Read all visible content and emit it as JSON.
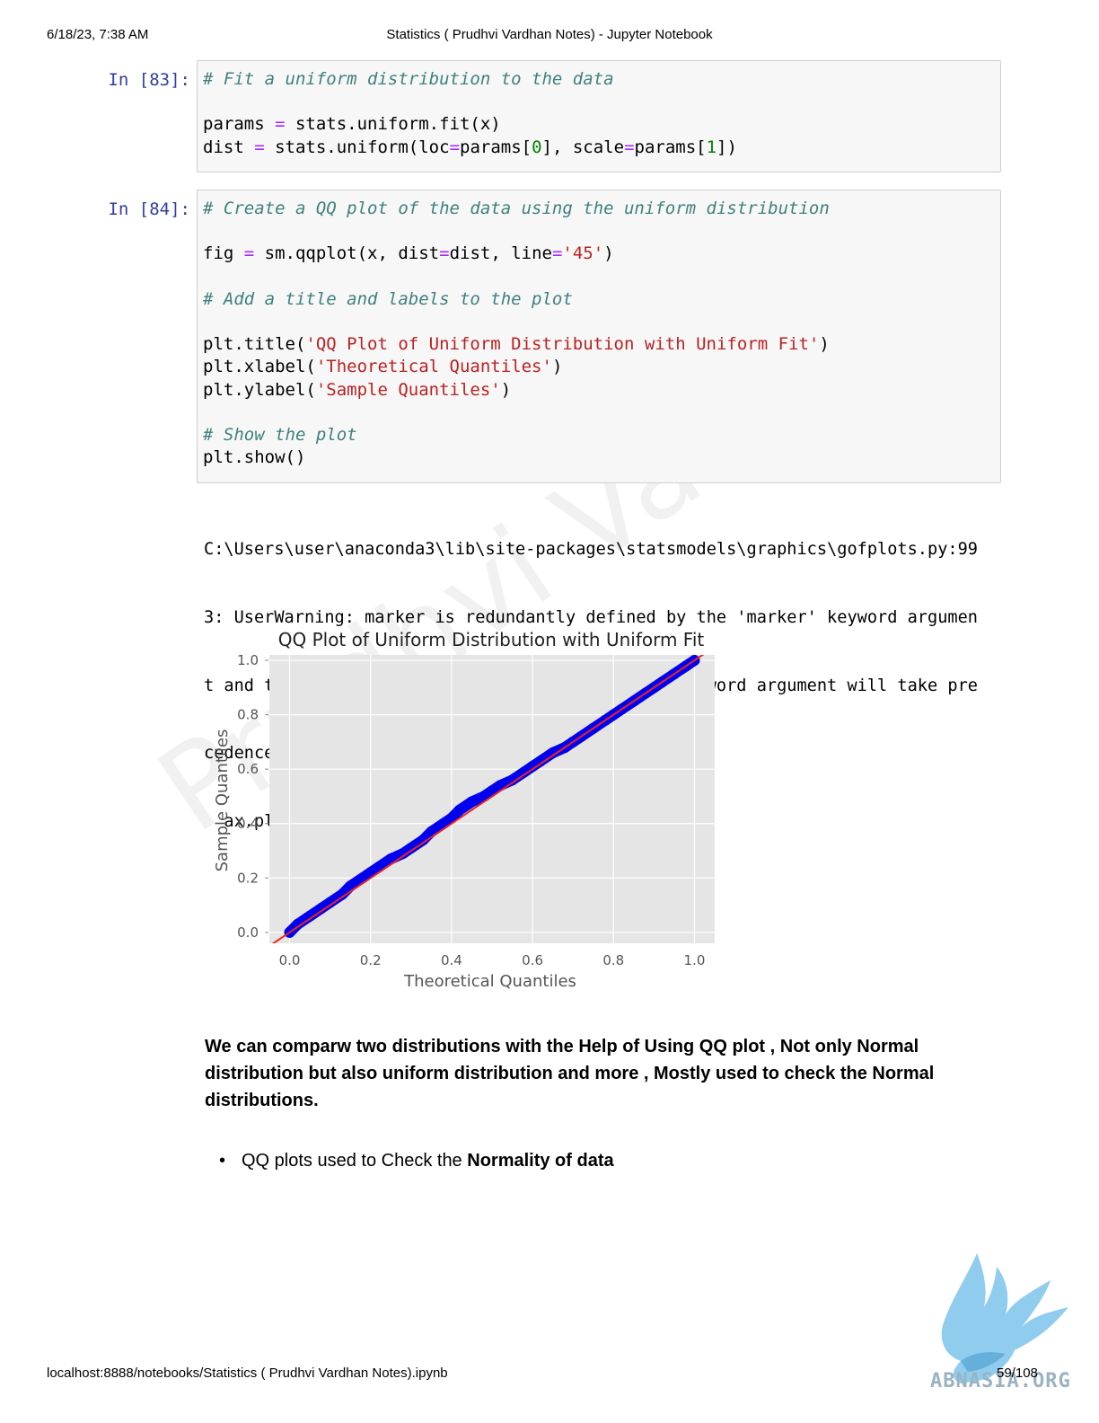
{
  "header": {
    "datetime": "6/18/23, 7:38 AM",
    "title": "Statistics ( Prudhvi Vardhan Notes) - Jupyter Notebook"
  },
  "footer": {
    "url": "localhost:8888/notebooks/Statistics ( Prudhvi Vardhan Notes).ipynb",
    "page": "59/108"
  },
  "cells": [
    {
      "prompt": "In [83]:",
      "lines": [
        [
          [
            "com",
            "# Fit a uniform distribution to the data"
          ]
        ],
        [],
        [
          [
            "n",
            "params "
          ],
          [
            "op",
            "="
          ],
          [
            "n",
            " stats.uniform.fit(x)"
          ]
        ],
        [
          [
            "n",
            "dist "
          ],
          [
            "op",
            "="
          ],
          [
            "n",
            " stats.uniform(loc"
          ],
          [
            "op",
            "="
          ],
          [
            "n",
            "params["
          ],
          [
            "num",
            "0"
          ],
          [
            "n",
            "], scale"
          ],
          [
            "op",
            "="
          ],
          [
            "n",
            "params["
          ],
          [
            "num",
            "1"
          ],
          [
            "n",
            "])"
          ]
        ]
      ]
    },
    {
      "prompt": "In [84]:",
      "lines": [
        [
          [
            "com",
            "# Create a QQ plot of the data using the uniform distribution"
          ]
        ],
        [],
        [
          [
            "n",
            "fig "
          ],
          [
            "op",
            "="
          ],
          [
            "n",
            " sm.qqplot(x, dist"
          ],
          [
            "op",
            "="
          ],
          [
            "n",
            "dist, line"
          ],
          [
            "op",
            "="
          ],
          [
            "str",
            "'45'"
          ],
          [
            "n",
            ")"
          ]
        ],
        [],
        [
          [
            "com",
            "# Add a title and labels to the plot"
          ]
        ],
        [],
        [
          [
            "n",
            "plt.title("
          ],
          [
            "str",
            "'QQ Plot of Uniform Distribution with Uniform Fit'"
          ],
          [
            "n",
            ")"
          ]
        ],
        [
          [
            "n",
            "plt.xlabel("
          ],
          [
            "str",
            "'Theoretical Quantiles'"
          ],
          [
            "n",
            ")"
          ]
        ],
        [
          [
            "n",
            "plt.ylabel("
          ],
          [
            "str",
            "'Sample Quantiles'"
          ],
          [
            "n",
            ")"
          ]
        ],
        [],
        [
          [
            "com",
            "# Show the plot"
          ]
        ],
        [
          [
            "n",
            "plt.show()"
          ]
        ]
      ]
    }
  ],
  "output": {
    "stderr_lines": [
      "C:\\Users\\user\\anaconda3\\lib\\site-packages\\statsmodels\\graphics\\gofplots.py:99",
      "3: UserWarning: marker is redundantly defined by the 'marker' keyword argumen",
      "t and the fmt string \"bo\" (-> marker='o'). The keyword argument will take pre",
      "cedence.",
      "  ax.plot(x, y, fmt, **plot_style)"
    ]
  },
  "chart_data": {
    "type": "scatter",
    "title": "QQ Plot of Uniform Distribution with Uniform Fit",
    "xlabel": "Theoretical Quantiles",
    "ylabel": "Sample Quantiles",
    "xlim": [
      -0.05,
      1.05
    ],
    "ylim": [
      -0.04,
      1.02
    ],
    "xticks": [
      "0.0",
      "0.2",
      "0.4",
      "0.6",
      "0.8",
      "1.0"
    ],
    "yticks": [
      "0.0",
      "0.2",
      "0.4",
      "0.6",
      "0.8",
      "1.0"
    ],
    "grid": true,
    "series": [
      {
        "kind": "points",
        "color": "#0000ee",
        "x": [
          0.0,
          0.02,
          0.05,
          0.08,
          0.1,
          0.13,
          0.15,
          0.18,
          0.2,
          0.22,
          0.25,
          0.28,
          0.3,
          0.33,
          0.35,
          0.38,
          0.4,
          0.42,
          0.45,
          0.48,
          0.5,
          0.52,
          0.55,
          0.58,
          0.6,
          0.62,
          0.65,
          0.68,
          0.7,
          0.72,
          0.75,
          0.78,
          0.8,
          0.82,
          0.85,
          0.88,
          0.9,
          0.92,
          0.95,
          0.98,
          1.0
        ],
        "y": [
          0.0,
          0.03,
          0.06,
          0.09,
          0.11,
          0.14,
          0.17,
          0.2,
          0.22,
          0.24,
          0.27,
          0.29,
          0.31,
          0.34,
          0.37,
          0.4,
          0.42,
          0.45,
          0.48,
          0.5,
          0.52,
          0.54,
          0.56,
          0.59,
          0.61,
          0.63,
          0.66,
          0.68,
          0.7,
          0.72,
          0.75,
          0.78,
          0.8,
          0.82,
          0.85,
          0.88,
          0.9,
          0.92,
          0.95,
          0.98,
          1.0
        ]
      },
      {
        "kind": "line",
        "color": "#ee2222",
        "x": [
          -0.05,
          1.05
        ],
        "y": [
          -0.05,
          1.05
        ]
      }
    ]
  },
  "text": {
    "paragraph": "We can comparw two distributions with the Help of Using QQ plot , Not only Normal distribution but also uniform distribution and more , Mostly used to check the Normal distributions.",
    "bullet_prefix": "QQ plots used to Check the ",
    "bullet_bold": "Normality of data"
  },
  "watermark": {
    "text": "Prudhvi Vardhan",
    "logo_text": "ABNASIA.ORG"
  }
}
